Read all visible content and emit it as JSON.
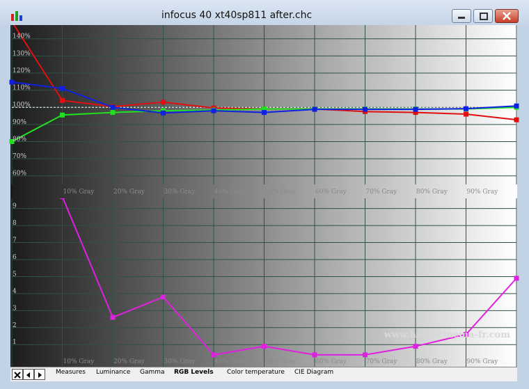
{
  "window": {
    "title": "infocus 40 xt40sp811 after.chc"
  },
  "tabs": [
    "Measures",
    "Luminance",
    "Gamma",
    "RGB Levels",
    "Color temperature",
    "CIE Diagram"
  ],
  "active_tab": 3,
  "watermark": "www.homecinema-fr.com",
  "chart_data": [
    {
      "type": "line",
      "categories": [
        null,
        "10% Gray",
        "20% Gray",
        "30% Gray",
        "40% Gray",
        "50% Gray",
        "60% Gray",
        "70% Gray",
        "80% Gray",
        "90% Gray",
        null
      ],
      "ylim": [
        55,
        148
      ],
      "yticks": [
        {
          "value": 60,
          "label": "60%"
        },
        {
          "value": 70,
          "label": "70%"
        },
        {
          "value": 80,
          "label": "80%"
        },
        {
          "value": 90,
          "label": "90%"
        },
        {
          "value": 100,
          "label": "100%"
        },
        {
          "value": 110,
          "label": "110%"
        },
        {
          "value": 120,
          "label": "120%"
        },
        {
          "value": 130,
          "label": "130%"
        },
        {
          "value": 140,
          "label": "140%"
        }
      ],
      "reference": 100,
      "grid": true,
      "series": [
        {
          "color": "#e01010",
          "values": [
            150,
            104,
            100.4,
            103,
            99.6,
            99,
            99,
            97.5,
            97,
            96,
            92.7
          ]
        },
        {
          "color": "#20e020",
          "values": [
            80,
            95.5,
            97,
            98,
            98.4,
            99,
            99,
            99,
            99,
            99,
            100
          ]
        },
        {
          "color": "#1020e0",
          "values": [
            114.7,
            111,
            100,
            96.7,
            98,
            97,
            98.8,
            98.8,
            98.8,
            99.2,
            100.8
          ]
        }
      ]
    },
    {
      "type": "line",
      "categories": [
        null,
        "10% Gray",
        "20% Gray",
        "30% Gray",
        "40% Gray",
        "50% Gray",
        "60% Gray",
        "70% Gray",
        "80% Gray",
        "90% Gray",
        null
      ],
      "ylim": [
        -0.3,
        9.6
      ],
      "yticks": [
        1,
        2,
        3,
        4,
        5,
        6,
        7,
        8,
        9
      ],
      "grid": true,
      "series": [
        {
          "color": "#e020e0",
          "values": [
            null,
            9.7,
            2.6,
            3.8,
            0.4,
            0.9,
            0.4,
            0.4,
            0.9,
            1.6,
            4.9
          ]
        }
      ]
    }
  ]
}
